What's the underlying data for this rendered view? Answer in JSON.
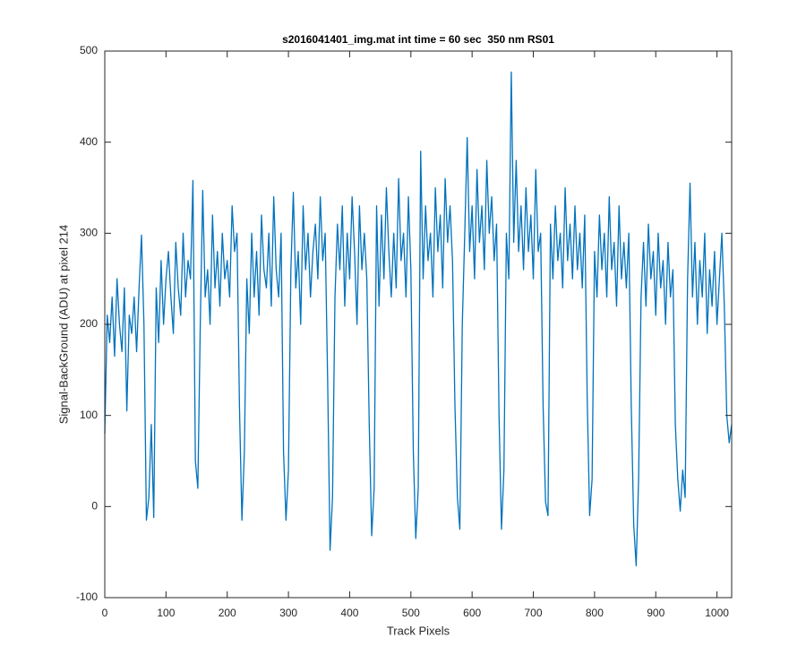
{
  "chart_data": {
    "type": "line",
    "title": "s2016041401_img.mat int time = 60 sec  350 nm RS01",
    "xlabel": "Track Pixels",
    "ylabel": "Signal-BackGround (ADU) at pixel 214",
    "color": "#0072bd",
    "xlim": [
      0,
      1024
    ],
    "xticks": [
      0,
      100,
      200,
      300,
      400,
      500,
      600,
      700,
      800,
      900,
      1000
    ],
    "ylim": [
      -100,
      500
    ],
    "yticks": [
      -100,
      0,
      100,
      200,
      300,
      400,
      500
    ],
    "x": [
      0,
      4,
      8,
      12,
      16,
      20,
      24,
      28,
      32,
      36,
      40,
      44,
      48,
      52,
      56,
      60,
      64,
      68,
      72,
      76,
      80,
      84,
      88,
      92,
      96,
      100,
      104,
      108,
      112,
      116,
      120,
      124,
      128,
      132,
      136,
      140,
      144,
      148,
      152,
      156,
      160,
      164,
      168,
      172,
      176,
      180,
      184,
      188,
      192,
      196,
      200,
      204,
      208,
      212,
      216,
      220,
      224,
      228,
      232,
      236,
      240,
      244,
      248,
      252,
      256,
      260,
      264,
      268,
      272,
      276,
      280,
      284,
      288,
      292,
      296,
      300,
      304,
      308,
      312,
      316,
      320,
      324,
      328,
      332,
      336,
      340,
      344,
      348,
      352,
      356,
      360,
      364,
      368,
      372,
      376,
      380,
      384,
      388,
      392,
      396,
      400,
      404,
      408,
      412,
      416,
      420,
      424,
      428,
      432,
      436,
      440,
      444,
      448,
      452,
      456,
      460,
      464,
      468,
      472,
      476,
      480,
      484,
      488,
      492,
      496,
      500,
      504,
      508,
      512,
      516,
      520,
      524,
      528,
      532,
      536,
      540,
      544,
      548,
      552,
      556,
      560,
      564,
      568,
      572,
      576,
      580,
      584,
      588,
      592,
      596,
      600,
      604,
      608,
      612,
      616,
      620,
      624,
      628,
      632,
      636,
      640,
      644,
      648,
      652,
      656,
      660,
      664,
      668,
      672,
      676,
      680,
      684,
      688,
      692,
      696,
      700,
      704,
      708,
      712,
      716,
      720,
      724,
      728,
      732,
      736,
      740,
      744,
      748,
      752,
      756,
      760,
      764,
      768,
      772,
      776,
      780,
      784,
      788,
      792,
      796,
      800,
      804,
      808,
      812,
      816,
      820,
      824,
      828,
      832,
      836,
      840,
      844,
      848,
      852,
      856,
      860,
      864,
      868,
      872,
      876,
      880,
      884,
      888,
      892,
      896,
      900,
      904,
      908,
      912,
      916,
      920,
      924,
      928,
      932,
      936,
      940,
      944,
      948,
      952,
      956,
      960,
      964,
      968,
      972,
      976,
      980,
      984,
      988,
      992,
      996,
      1000,
      1004,
      1008,
      1012,
      1016,
      1020,
      1024
    ],
    "values": [
      80,
      210,
      180,
      230,
      165,
      250,
      200,
      170,
      240,
      105,
      210,
      190,
      230,
      170,
      240,
      298,
      200,
      -15,
      10,
      90,
      -12,
      240,
      180,
      270,
      200,
      250,
      280,
      230,
      190,
      290,
      240,
      210,
      300,
      230,
      270,
      250,
      358,
      50,
      20,
      200,
      347,
      230,
      260,
      200,
      320,
      240,
      280,
      220,
      300,
      250,
      270,
      230,
      330,
      280,
      300,
      110,
      -15,
      60,
      250,
      190,
      300,
      230,
      280,
      210,
      320,
      260,
      240,
      300,
      220,
      340,
      260,
      230,
      300,
      60,
      -15,
      40,
      260,
      345,
      240,
      280,
      200,
      330,
      260,
      300,
      230,
      280,
      310,
      250,
      340,
      270,
      300,
      140,
      -48,
      10,
      230,
      310,
      260,
      330,
      220,
      300,
      250,
      340,
      280,
      200,
      330,
      260,
      300,
      250,
      90,
      -32,
      20,
      330,
      220,
      320,
      250,
      350,
      280,
      230,
      300,
      240,
      360,
      270,
      300,
      230,
      340,
      260,
      60,
      -35,
      20,
      390,
      250,
      330,
      270,
      300,
      230,
      350,
      280,
      320,
      240,
      360,
      290,
      330,
      270,
      110,
      10,
      -25,
      200,
      300,
      405,
      280,
      330,
      250,
      370,
      290,
      330,
      260,
      380,
      300,
      340,
      270,
      310,
      100,
      -25,
      40,
      300,
      250,
      477,
      290,
      380,
      280,
      330,
      260,
      350,
      280,
      320,
      250,
      370,
      280,
      300,
      110,
      5,
      -10,
      310,
      250,
      330,
      270,
      300,
      240,
      350,
      270,
      310,
      250,
      330,
      260,
      300,
      240,
      320,
      120,
      -10,
      30,
      280,
      230,
      320,
      260,
      300,
      230,
      340,
      260,
      290,
      220,
      330,
      250,
      290,
      240,
      300,
      110,
      -20,
      -65,
      30,
      230,
      290,
      220,
      310,
      250,
      280,
      210,
      300,
      240,
      270,
      200,
      290,
      230,
      260,
      90,
      30,
      -5,
      40,
      10,
      250,
      355,
      230,
      290,
      200,
      270,
      230,
      300,
      190,
      260,
      220,
      280,
      200,
      250,
      300,
      220,
      100,
      70,
      90
    ]
  }
}
